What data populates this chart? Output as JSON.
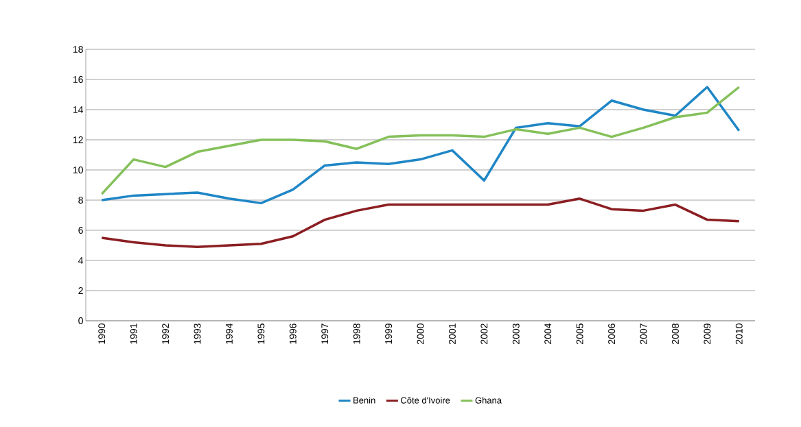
{
  "chart_data": {
    "type": "line",
    "categories": [
      "1990",
      "1991",
      "1992",
      "1993",
      "1994",
      "1995",
      "1996",
      "1997",
      "1998",
      "1999",
      "2000",
      "2001",
      "2002",
      "2003",
      "2004",
      "2005",
      "2006",
      "2007",
      "2008",
      "2009",
      "2010"
    ],
    "series": [
      {
        "name": "Benin",
        "color": "#1f86c6",
        "values": [
          8.0,
          8.3,
          8.4,
          8.5,
          8.1,
          7.8,
          8.7,
          10.3,
          10.5,
          10.4,
          10.7,
          11.3,
          9.3,
          12.8,
          13.1,
          12.9,
          14.6,
          14.0,
          13.6,
          15.5,
          12.6
        ]
      },
      {
        "name": "Côte d'Ivoire",
        "color": "#8b1e22",
        "values": [
          5.5,
          5.2,
          5.0,
          4.9,
          5.0,
          5.1,
          5.6,
          6.7,
          7.3,
          7.7,
          7.7,
          7.7,
          7.7,
          7.7,
          7.7,
          8.1,
          7.4,
          7.3,
          7.7,
          6.7,
          6.6
        ]
      },
      {
        "name": "Ghana",
        "color": "#85c05a",
        "values": [
          8.4,
          10.7,
          10.2,
          11.2,
          11.6,
          12.0,
          12.0,
          11.9,
          11.4,
          12.2,
          12.3,
          12.3,
          12.2,
          12.7,
          12.4,
          12.8,
          12.2,
          12.8,
          13.5,
          13.8,
          15.5
        ]
      }
    ],
    "ylim": [
      0,
      18
    ],
    "yticks": [
      0,
      2,
      4,
      6,
      8,
      10,
      12,
      14,
      16,
      18
    ],
    "grid": "y",
    "legend": "bottom",
    "marker": "none",
    "line_style": "solid"
  }
}
